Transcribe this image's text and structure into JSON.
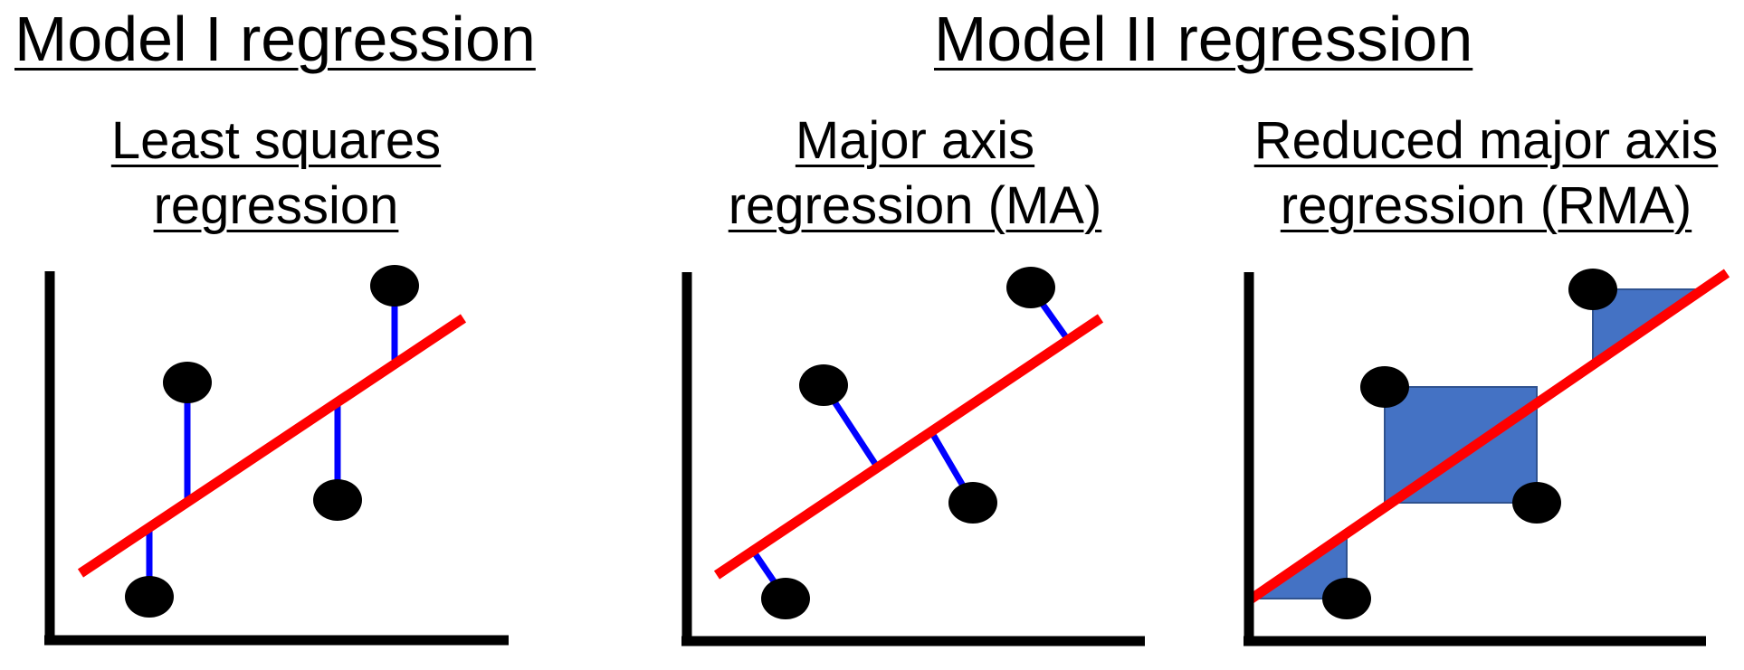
{
  "headings": {
    "model1": "Model I regression",
    "model2": "Model II regression"
  },
  "panels": [
    {
      "title_line1": "Least squares ",
      "title_line2": "regression"
    },
    {
      "title_line1": "Major axis ",
      "title_line2": "regression (MA)"
    },
    {
      "title_line1": "Reduced major axis ",
      "title_line2": "regression (RMA)"
    }
  ],
  "colors": {
    "fit_line": "#ff0000",
    "residual": "#0000ff",
    "area_fill": "#4472c4",
    "points": "#000000",
    "axes": "#000000"
  }
}
